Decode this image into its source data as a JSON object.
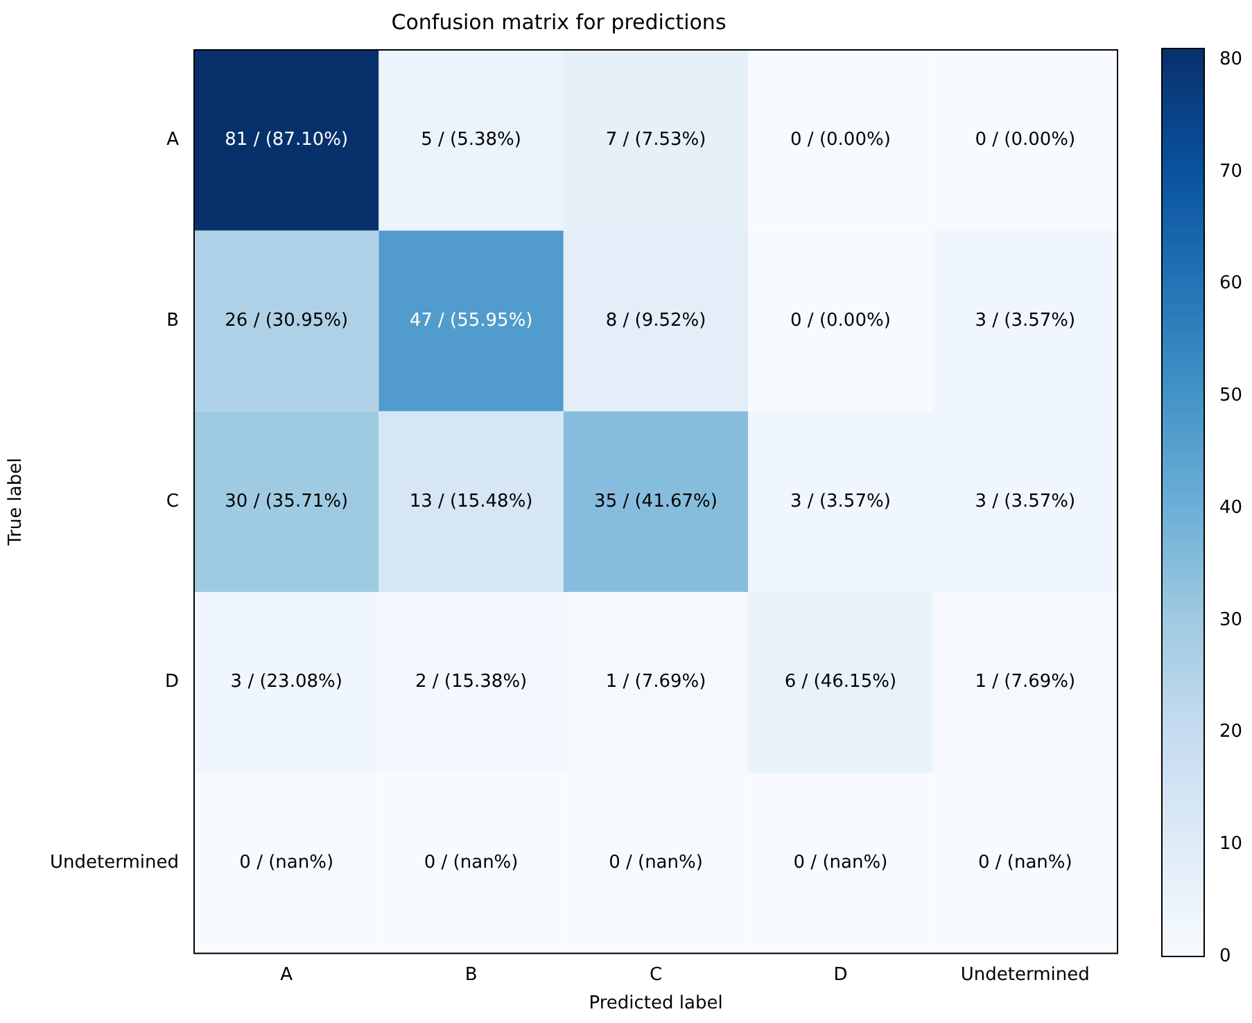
{
  "chart_data": {
    "type": "heatmap",
    "title": "Confusion matrix for predictions",
    "xlabel": "Predicted label",
    "ylabel": "True label",
    "categories": [
      "A",
      "B",
      "C",
      "D",
      "Undetermined"
    ],
    "y_categories": [
      "A",
      "B",
      "C",
      "D",
      "Undetermined"
    ],
    "cells": [
      [
        81,
        5,
        7,
        0,
        0
      ],
      [
        26,
        47,
        8,
        0,
        3
      ],
      [
        30,
        13,
        35,
        3,
        3
      ],
      [
        3,
        2,
        1,
        6,
        1
      ],
      [
        0,
        0,
        0,
        0,
        0
      ]
    ],
    "cell_labels": [
      [
        "81 / (87.10%)",
        "5 / (5.38%)",
        "7 / (7.53%)",
        "0 / (0.00%)",
        "0 / (0.00%)"
      ],
      [
        "26 / (30.95%)",
        "47 / (55.95%)",
        "8 / (9.52%)",
        "0 / (0.00%)",
        "3 / (3.57%)"
      ],
      [
        "30 / (35.71%)",
        "13 / (15.48%)",
        "35 / (41.67%)",
        "3 / (3.57%)",
        "3 / (3.57%)"
      ],
      [
        "3 / (23.08%)",
        "2 / (15.38%)",
        "1 / (7.69%)",
        "6 / (46.15%)",
        "1 / (7.69%)"
      ],
      [
        "0 / (nan%)",
        "0 / (nan%)",
        "0 / (nan%)",
        "0 / (nan%)",
        "0 / (nan%)"
      ]
    ],
    "clim": [
      0,
      81
    ],
    "cticks": [
      0,
      10,
      20,
      30,
      40,
      50,
      60,
      70,
      80
    ]
  }
}
